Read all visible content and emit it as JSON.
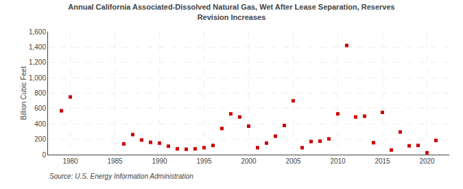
{
  "chart_data": {
    "type": "scatter",
    "title": "Annual California Associated-Dissolved Natural Gas, Wet After Lease Separation, Reserves\nRevision Increases",
    "ylabel": "Billion Cubic Feet",
    "annotations": [
      "Source: U.S. Energy Information Administration"
    ],
    "x": [
      1979,
      1980,
      1986,
      1987,
      1988,
      1989,
      1990,
      1991,
      1992,
      1993,
      1994,
      1995,
      1996,
      1997,
      1998,
      1999,
      2000,
      2001,
      2002,
      2003,
      2004,
      2005,
      2006,
      2007,
      2008,
      2009,
      2010,
      2011,
      2012,
      2013,
      2014,
      2015,
      2016,
      2017,
      2018,
      2019,
      2020,
      2021
    ],
    "values": [
      570,
      750,
      140,
      260,
      190,
      160,
      150,
      110,
      75,
      70,
      75,
      90,
      120,
      340,
      530,
      490,
      370,
      90,
      150,
      240,
      380,
      700,
      90,
      170,
      175,
      205,
      530,
      1420,
      490,
      500,
      155,
      550,
      60,
      295,
      115,
      120,
      25,
      185
    ],
    "color": "#cc0000",
    "marker": "square",
    "xlim": [
      1977.5,
      2022.5
    ],
    "xticks": [
      1980,
      1985,
      1990,
      1995,
      2000,
      2005,
      2010,
      2015,
      2020
    ],
    "ylim": [
      0,
      1600
    ],
    "yticks": [
      0,
      200,
      400,
      600,
      800,
      {
        "value": 1000,
        "label": "1,000"
      },
      {
        "value": 1200,
        "label": "1,200"
      },
      {
        "value": 1400,
        "label": "1,400"
      },
      {
        "value": 1600,
        "label": "1,600"
      }
    ],
    "grid": true
  }
}
